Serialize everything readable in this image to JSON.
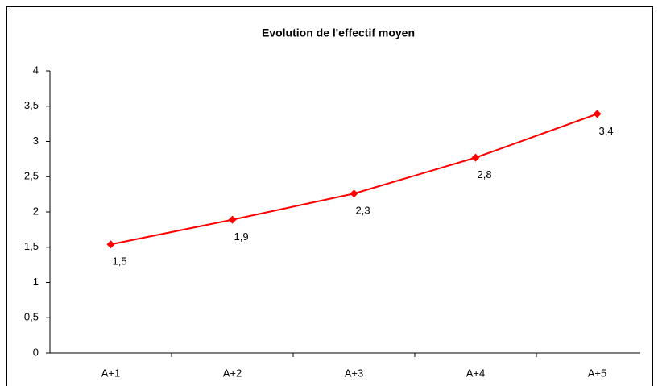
{
  "chart_data": {
    "type": "line",
    "title": "Evolution de l'effectif moyen",
    "categories": [
      "A+1",
      "A+2",
      "A+3",
      "A+4",
      "A+5"
    ],
    "series": [
      {
        "name": "Effectif moyen",
        "color": "#ff0000",
        "values": [
          1.54,
          1.89,
          2.26,
          2.77,
          3.39
        ],
        "value_labels": [
          "1,5",
          "1,9",
          "2,3",
          "2,8",
          "3,4"
        ]
      }
    ],
    "ylim": [
      0,
      4
    ],
    "yticks": [
      0,
      {
        "value": 0.5,
        "label": "0,5"
      },
      1,
      {
        "value": 1.5,
        "label": "1,5"
      },
      2,
      {
        "value": 2.5,
        "label": "2,5"
      },
      3,
      {
        "value": 3.5,
        "label": "3,5"
      },
      4
    ],
    "grid": false,
    "legend": false
  }
}
